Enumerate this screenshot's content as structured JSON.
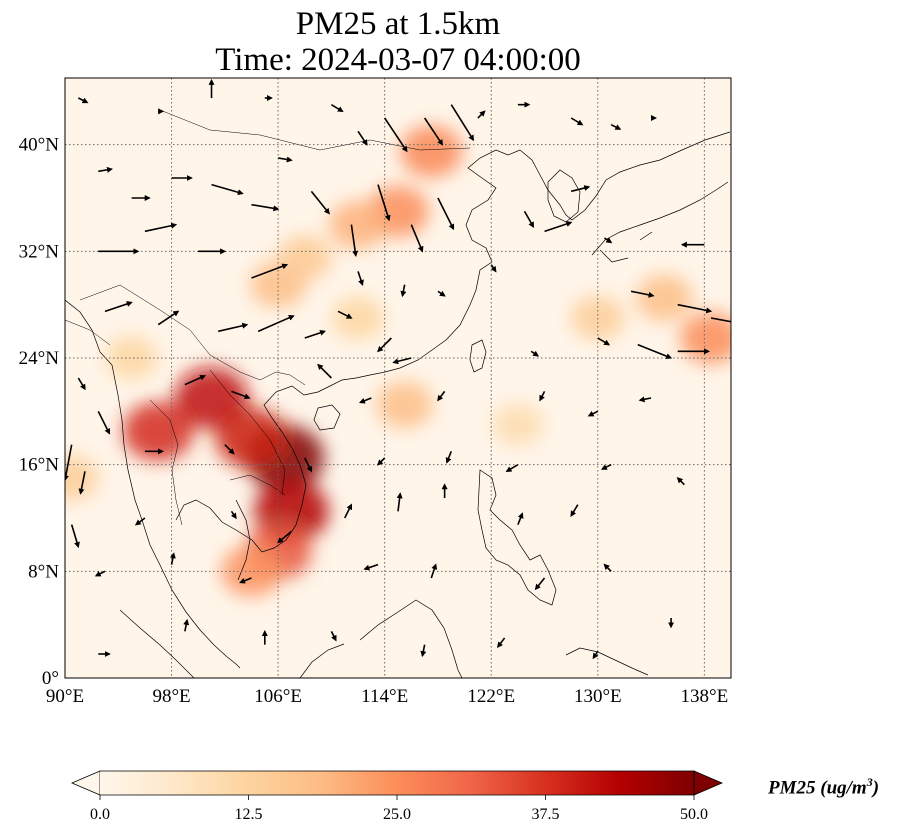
{
  "title_line1": "PM25 at 1.5km",
  "title_line2": "Time: 2024-03-07 04:00:00",
  "map": {
    "lon_range": [
      90,
      140
    ],
    "lat_range": [
      0,
      45
    ],
    "lon_ticks": [
      {
        "value": 90,
        "label": "90°E"
      },
      {
        "value": 98,
        "label": "98°E"
      },
      {
        "value": 106,
        "label": "106°E"
      },
      {
        "value": 114,
        "label": "114°E"
      },
      {
        "value": 122,
        "label": "122°E"
      },
      {
        "value": 130,
        "label": "130°E"
      },
      {
        "value": 138,
        "label": "138°E"
      }
    ],
    "lat_ticks": [
      {
        "value": 0,
        "label": "0°"
      },
      {
        "value": 8,
        "label": "8°N"
      },
      {
        "value": 16,
        "label": "16°N"
      },
      {
        "value": 24,
        "label": "24°N"
      },
      {
        "value": 32,
        "label": "32°N"
      },
      {
        "value": 40,
        "label": "40°N"
      }
    ],
    "gridlines": true,
    "variable": "PM25",
    "colormap": "OrRd",
    "pollution_hotspots": [
      {
        "lon": 106.5,
        "lat": 16.5,
        "value": 50
      },
      {
        "lon": 101.0,
        "lat": 21.0,
        "value": 42
      },
      {
        "lon": 97.0,
        "lat": 18.5,
        "value": 38
      },
      {
        "lon": 104.0,
        "lat": 18.0,
        "value": 40
      },
      {
        "lon": 107.0,
        "lat": 12.5,
        "value": 44
      },
      {
        "lon": 106.0,
        "lat": 9.5,
        "value": 33
      },
      {
        "lon": 104.0,
        "lat": 8.0,
        "value": 24
      },
      {
        "lon": 117.5,
        "lat": 39.5,
        "value": 26
      },
      {
        "lon": 115.0,
        "lat": 35.0,
        "value": 25
      },
      {
        "lon": 112.0,
        "lat": 34.0,
        "value": 20
      },
      {
        "lon": 106.0,
        "lat": 29.5,
        "value": 18
      },
      {
        "lon": 108.0,
        "lat": 31.5,
        "value": 15
      },
      {
        "lon": 135.0,
        "lat": 28.5,
        "value": 18
      },
      {
        "lon": 138.5,
        "lat": 25.5,
        "value": 25
      },
      {
        "lon": 130.0,
        "lat": 27.0,
        "value": 14
      },
      {
        "lon": 115.5,
        "lat": 20.5,
        "value": 18
      },
      {
        "lon": 112.0,
        "lat": 27.0,
        "value": 12
      },
      {
        "lon": 95.0,
        "lat": 24.0,
        "value": 12
      },
      {
        "lon": 124.0,
        "lat": 19.0,
        "value": 10
      },
      {
        "lon": 90.5,
        "lat": 15.0,
        "value": 14
      }
    ],
    "wind_vectors": [
      {
        "lon": 91.0,
        "lat": 43.5,
        "u": 0.4,
        "v": -0.2
      },
      {
        "lon": 97.0,
        "lat": 42.5,
        "u": 0.2,
        "v": 0.0
      },
      {
        "lon": 101.0,
        "lat": 43.5,
        "u": 0.0,
        "v": 0.8
      },
      {
        "lon": 105.0,
        "lat": 43.5,
        "u": 0.3,
        "v": 0.0
      },
      {
        "lon": 106.0,
        "lat": 39.0,
        "u": 0.6,
        "v": -0.1
      },
      {
        "lon": 110.0,
        "lat": 43.0,
        "u": 0.5,
        "v": -0.3
      },
      {
        "lon": 112.0,
        "lat": 41.0,
        "u": 0.4,
        "v": -0.6
      },
      {
        "lon": 114.0,
        "lat": 42.0,
        "u": 1.0,
        "v": -1.5
      },
      {
        "lon": 117.0,
        "lat": 42.0,
        "u": 0.8,
        "v": -1.2
      },
      {
        "lon": 119.0,
        "lat": 43.0,
        "u": 1.0,
        "v": -1.6
      },
      {
        "lon": 121.0,
        "lat": 42.0,
        "u": 0.3,
        "v": 0.3
      },
      {
        "lon": 124.0,
        "lat": 43.0,
        "u": 0.5,
        "v": 0.0
      },
      {
        "lon": 128.0,
        "lat": 42.0,
        "u": 0.5,
        "v": -0.3
      },
      {
        "lon": 131.0,
        "lat": 41.5,
        "u": 0.4,
        "v": -0.2
      },
      {
        "lon": 134.0,
        "lat": 42.0,
        "u": 0.2,
        "v": 0.0
      },
      {
        "lon": 92.5,
        "lat": 38.0,
        "u": 0.6,
        "v": 0.1
      },
      {
        "lon": 95.0,
        "lat": 36.0,
        "u": 0.8,
        "v": 0.0
      },
      {
        "lon": 98.0,
        "lat": 37.5,
        "u": 0.9,
        "v": 0.0
      },
      {
        "lon": 101.0,
        "lat": 37.0,
        "u": 1.4,
        "v": -0.4
      },
      {
        "lon": 104.0,
        "lat": 35.5,
        "u": 1.2,
        "v": -0.2
      },
      {
        "lon": 108.5,
        "lat": 36.5,
        "u": 0.8,
        "v": -1.0
      },
      {
        "lon": 111.5,
        "lat": 34.0,
        "u": 0.2,
        "v": -1.4
      },
      {
        "lon": 113.5,
        "lat": 37.0,
        "u": 0.5,
        "v": -1.6
      },
      {
        "lon": 116.0,
        "lat": 34.0,
        "u": 0.5,
        "v": -1.2
      },
      {
        "lon": 118.0,
        "lat": 36.0,
        "u": 0.7,
        "v": -1.4
      },
      {
        "lon": 124.5,
        "lat": 35.0,
        "u": 0.4,
        "v": -0.7
      },
      {
        "lon": 126.0,
        "lat": 33.5,
        "u": 1.2,
        "v": 0.4
      },
      {
        "lon": 128.0,
        "lat": 36.5,
        "u": 0.8,
        "v": 0.2
      },
      {
        "lon": 130.5,
        "lat": 33.0,
        "u": 0.3,
        "v": -0.2
      },
      {
        "lon": 138.0,
        "lat": 32.5,
        "u": -1.0,
        "v": 0.0
      },
      {
        "lon": 92.5,
        "lat": 32.0,
        "u": 1.8,
        "v": 0.0
      },
      {
        "lon": 96.0,
        "lat": 33.5,
        "u": 1.4,
        "v": 0.3
      },
      {
        "lon": 100.0,
        "lat": 32.0,
        "u": 1.2,
        "v": 0.0
      },
      {
        "lon": 104.0,
        "lat": 30.0,
        "u": 1.6,
        "v": 0.6
      },
      {
        "lon": 112.0,
        "lat": 30.5,
        "u": 0.2,
        "v": -0.6
      },
      {
        "lon": 115.5,
        "lat": 29.5,
        "u": -0.1,
        "v": -0.5
      },
      {
        "lon": 118.0,
        "lat": 29.0,
        "u": 0.3,
        "v": -0.2
      },
      {
        "lon": 122.0,
        "lat": 31.0,
        "u": 0.2,
        "v": -0.3
      },
      {
        "lon": 132.5,
        "lat": 29.0,
        "u": 1.0,
        "v": -0.2
      },
      {
        "lon": 136.0,
        "lat": 28.0,
        "u": 1.5,
        "v": -0.3
      },
      {
        "lon": 138.5,
        "lat": 27.0,
        "u": 1.6,
        "v": -0.3
      },
      {
        "lon": 93.0,
        "lat": 27.5,
        "u": 1.2,
        "v": 0.4
      },
      {
        "lon": 97.0,
        "lat": 26.5,
        "u": 0.9,
        "v": 0.6
      },
      {
        "lon": 101.5,
        "lat": 26.0,
        "u": 1.3,
        "v": 0.3
      },
      {
        "lon": 104.5,
        "lat": 26.0,
        "u": 1.6,
        "v": 0.7
      },
      {
        "lon": 108.0,
        "lat": 25.5,
        "u": 0.9,
        "v": 0.3
      },
      {
        "lon": 110.5,
        "lat": 27.5,
        "u": 0.6,
        "v": -0.3
      },
      {
        "lon": 114.5,
        "lat": 25.5,
        "u": -0.6,
        "v": -0.6
      },
      {
        "lon": 116.0,
        "lat": 24.0,
        "u": -0.8,
        "v": -0.2
      },
      {
        "lon": 125.0,
        "lat": 24.5,
        "u": 0.3,
        "v": -0.2
      },
      {
        "lon": 130.0,
        "lat": 25.5,
        "u": 0.5,
        "v": -0.3
      },
      {
        "lon": 133.0,
        "lat": 25.0,
        "u": 1.5,
        "v": -0.6
      },
      {
        "lon": 136.0,
        "lat": 24.5,
        "u": 1.4,
        "v": 0.0
      },
      {
        "lon": 91.0,
        "lat": 22.5,
        "u": 0.3,
        "v": -0.5
      },
      {
        "lon": 92.5,
        "lat": 20.0,
        "u": 0.5,
        "v": -1.0
      },
      {
        "lon": 99.0,
        "lat": 22.0,
        "u": 0.9,
        "v": 0.4
      },
      {
        "lon": 102.5,
        "lat": 21.5,
        "u": 0.8,
        "v": -0.3
      },
      {
        "lon": 110.0,
        "lat": 22.5,
        "u": -0.6,
        "v": 0.6
      },
      {
        "lon": 113.0,
        "lat": 21.0,
        "u": -0.5,
        "v": -0.2
      },
      {
        "lon": 118.5,
        "lat": 21.5,
        "u": -0.3,
        "v": -0.4
      },
      {
        "lon": 126.0,
        "lat": 21.5,
        "u": -0.2,
        "v": -0.4
      },
      {
        "lon": 130.0,
        "lat": 20.0,
        "u": -0.4,
        "v": -0.2
      },
      {
        "lon": 134.0,
        "lat": 21.0,
        "u": -0.5,
        "v": -0.1
      },
      {
        "lon": 90.5,
        "lat": 17.5,
        "u": -0.3,
        "v": -1.6
      },
      {
        "lon": 91.5,
        "lat": 15.5,
        "u": -0.2,
        "v": -1.0
      },
      {
        "lon": 96.0,
        "lat": 17.0,
        "u": 0.8,
        "v": 0.0
      },
      {
        "lon": 102.0,
        "lat": 17.5,
        "u": 0.4,
        "v": -0.4
      },
      {
        "lon": 108.0,
        "lat": 16.5,
        "u": 0.3,
        "v": -0.6
      },
      {
        "lon": 114.0,
        "lat": 16.5,
        "u": -0.3,
        "v": -0.3
      },
      {
        "lon": 119.0,
        "lat": 17.0,
        "u": -0.2,
        "v": -0.5
      },
      {
        "lon": 124.0,
        "lat": 16.0,
        "u": -0.5,
        "v": -0.3
      },
      {
        "lon": 131.0,
        "lat": 16.0,
        "u": -0.4,
        "v": -0.2
      },
      {
        "lon": 136.5,
        "lat": 14.5,
        "u": -0.3,
        "v": 0.3
      },
      {
        "lon": 90.5,
        "lat": 11.5,
        "u": 0.3,
        "v": -1.0
      },
      {
        "lon": 96.0,
        "lat": 12.0,
        "u": -0.4,
        "v": -0.3
      },
      {
        "lon": 102.5,
        "lat": 12.5,
        "u": 0.2,
        "v": -0.3
      },
      {
        "lon": 107.0,
        "lat": 11.0,
        "u": -0.6,
        "v": -0.5
      },
      {
        "lon": 111.0,
        "lat": 12.0,
        "u": 0.3,
        "v": 0.6
      },
      {
        "lon": 115.0,
        "lat": 12.5,
        "u": 0.1,
        "v": 0.8
      },
      {
        "lon": 118.5,
        "lat": 13.5,
        "u": 0.0,
        "v": 0.6
      },
      {
        "lon": 124.0,
        "lat": 11.5,
        "u": 0.2,
        "v": 0.5
      },
      {
        "lon": 128.5,
        "lat": 13.0,
        "u": -0.3,
        "v": -0.5
      },
      {
        "lon": 93.0,
        "lat": 8.0,
        "u": -0.4,
        "v": -0.2
      },
      {
        "lon": 98.0,
        "lat": 8.5,
        "u": 0.1,
        "v": 0.5
      },
      {
        "lon": 104.0,
        "lat": 7.5,
        "u": -0.5,
        "v": -0.2
      },
      {
        "lon": 113.5,
        "lat": 8.5,
        "u": -0.6,
        "v": -0.2
      },
      {
        "lon": 117.5,
        "lat": 7.5,
        "u": 0.2,
        "v": 0.6
      },
      {
        "lon": 126.0,
        "lat": 7.5,
        "u": -0.4,
        "v": -0.5
      },
      {
        "lon": 131.0,
        "lat": 8.0,
        "u": -0.3,
        "v": 0.3
      },
      {
        "lon": 92.5,
        "lat": 1.8,
        "u": 0.5,
        "v": 0.0
      },
      {
        "lon": 99.0,
        "lat": 3.5,
        "u": 0.1,
        "v": 0.5
      },
      {
        "lon": 105.0,
        "lat": 2.5,
        "u": 0.0,
        "v": 0.6
      },
      {
        "lon": 110.0,
        "lat": 3.5,
        "u": 0.2,
        "v": -0.4
      },
      {
        "lon": 117.0,
        "lat": 2.5,
        "u": -0.1,
        "v": -0.5
      },
      {
        "lon": 123.0,
        "lat": 3.0,
        "u": -0.3,
        "v": -0.4
      },
      {
        "lon": 130.0,
        "lat": 2.0,
        "u": -0.2,
        "v": -0.3
      },
      {
        "lon": 135.5,
        "lat": 4.5,
        "u": 0.0,
        "v": -0.4
      }
    ]
  },
  "colorbar": {
    "min": 0.0,
    "max": 50.0,
    "extend": "both",
    "tick_values": [
      0.0,
      12.5,
      25.0,
      37.5,
      50.0
    ],
    "tick_labels": [
      "0.0",
      "12.5",
      "25.0",
      "37.5",
      "50.0"
    ],
    "label_main": "PM25 (ug/m",
    "label_sup": "3",
    "label_close": ")",
    "colors": [
      "#fff7ec",
      "#fee8c8",
      "#fdd49e",
      "#fdbb84",
      "#fc8d59",
      "#ef6548",
      "#d7301f",
      "#b30000",
      "#7f0000"
    ]
  }
}
